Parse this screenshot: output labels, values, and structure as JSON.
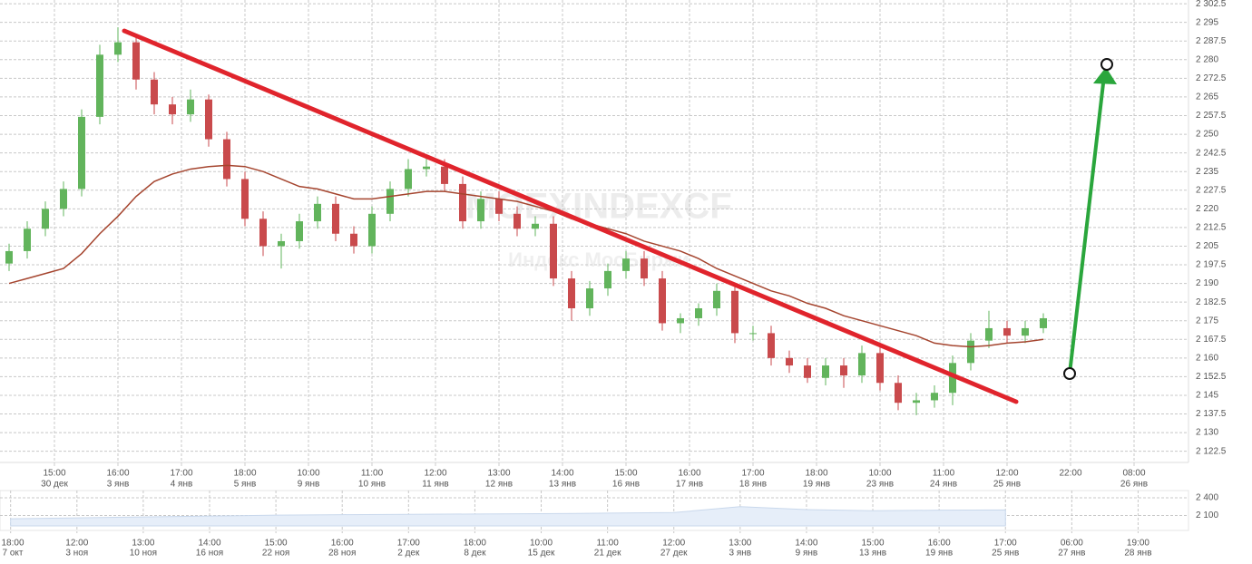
{
  "chart_data": {
    "type": "candlestick",
    "title": "MOEXINDEXCF",
    "subtitle": "Индекс МосБиржи",
    "x": [
      1,
      3,
      5,
      7,
      9,
      11,
      13,
      15,
      17,
      19,
      21,
      23,
      25,
      27,
      29,
      31,
      33,
      35,
      37,
      39,
      41,
      43,
      45,
      47,
      49,
      51,
      53,
      55,
      57,
      59,
      61,
      63,
      65,
      67,
      69,
      71,
      73,
      75,
      77,
      79,
      81,
      83,
      85,
      87,
      89,
      91,
      93,
      95,
      97,
      99,
      101,
      103,
      105,
      107,
      109,
      111,
      113,
      115
    ],
    "open": [
      2198,
      2203,
      2212,
      2220,
      2228,
      2257,
      2282,
      2287,
      2272,
      2262,
      2258,
      2264,
      2248,
      2232,
      2216,
      2205,
      2207,
      2215,
      2222,
      2210,
      2205,
      2218,
      2228,
      2236,
      2237,
      2230,
      2215,
      2224,
      2218,
      2212,
      2214,
      2192,
      2180,
      2188,
      2195,
      2200,
      2192,
      2174,
      2176,
      2180,
      2187,
      2170,
      2170,
      2160,
      2157,
      2152,
      2157,
      2153,
      2162,
      2150,
      2142,
      2143,
      2146,
      2158,
      2167,
      2172,
      2169,
      2172
    ],
    "high": [
      2206,
      2215,
      2223,
      2231,
      2260,
      2286,
      2293,
      2289,
      2275,
      2265,
      2268,
      2266,
      2251,
      2235,
      2219,
      2210,
      2218,
      2225,
      2225,
      2213,
      2221,
      2231,
      2240,
      2241,
      2240,
      2233,
      2227,
      2227,
      2221,
      2217,
      2217,
      2195,
      2191,
      2198,
      2203,
      2203,
      2195,
      2178,
      2182,
      2190,
      2190,
      2173,
      2173,
      2163,
      2160,
      2160,
      2160,
      2165,
      2165,
      2153,
      2146,
      2149,
      2161,
      2170,
      2179,
      2175,
      2175,
      2178
    ],
    "low": [
      2195,
      2200,
      2209,
      2217,
      2225,
      2254,
      2279,
      2268,
      2258,
      2254,
      2255,
      2245,
      2229,
      2213,
      2201,
      2196,
      2204,
      2212,
      2207,
      2202,
      2202,
      2215,
      2225,
      2233,
      2227,
      2212,
      2212,
      2215,
      2209,
      2209,
      2189,
      2175,
      2177,
      2185,
      2192,
      2189,
      2171,
      2170,
      2173,
      2177,
      2166,
      2167,
      2157,
      2154,
      2150,
      2149,
      2148,
      2150,
      2147,
      2139,
      2137,
      2140,
      2141,
      2155,
      2164,
      2166,
      2166,
      2170
    ],
    "close": [
      2203,
      2212,
      2220,
      2228,
      2257,
      2282,
      2287,
      2272,
      2262,
      2258,
      2264,
      2248,
      2232,
      2216,
      2205,
      2207,
      2215,
      2222,
      2210,
      2205,
      2218,
      2228,
      2236,
      2237,
      2230,
      2215,
      2224,
      2218,
      2212,
      2214,
      2192,
      2180,
      2188,
      2195,
      2200,
      2192,
      2174,
      2176,
      2180,
      2187,
      2170,
      2170,
      2160,
      2157,
      2152,
      2157,
      2153,
      2162,
      2150,
      2142,
      2143,
      2146,
      2158,
      2167,
      2172,
      2169,
      2172,
      2176
    ],
    "colors": {
      "up": "#62b45c",
      "down": "#c94a4c"
    },
    "moving_average": {
      "color": "#a5452f",
      "values": [
        2190,
        2192,
        2194,
        2196,
        2202,
        2210,
        2217,
        2225,
        2231,
        2234,
        2236,
        2237,
        2237.5,
        2237,
        2235,
        2232,
        2229,
        2228,
        2226,
        2224,
        2224,
        2225,
        2226,
        2227,
        2227,
        2226,
        2225,
        2224,
        2223,
        2221,
        2219,
        2216,
        2214,
        2212,
        2210,
        2207,
        2205,
        2203,
        2200,
        2196,
        2193,
        2190,
        2187,
        2185,
        2182,
        2180,
        2177,
        2175,
        2173,
        2171,
        2169,
        2166,
        2165,
        2164.5,
        2165,
        2166,
        2166.5,
        2167.5
      ]
    },
    "xlim": [
      0,
      131
    ],
    "xticks": [
      {
        "value": 6,
        "label": [
          "15:00",
          "30 дек"
        ]
      },
      {
        "value": 13,
        "label": [
          "16:00",
          "3 янв"
        ]
      },
      {
        "value": 20,
        "label": [
          "17:00",
          "4 янв"
        ]
      },
      {
        "value": 27,
        "label": [
          "18:00",
          "5 янв"
        ]
      },
      {
        "value": 34,
        "label": [
          "10:00",
          "9 янв"
        ]
      },
      {
        "value": 41,
        "label": [
          "11:00",
          "10 янв"
        ]
      },
      {
        "value": 48,
        "label": [
          "12:00",
          "11 янв"
        ]
      },
      {
        "value": 55,
        "label": [
          "13:00",
          "12 янв"
        ]
      },
      {
        "value": 62,
        "label": [
          "14:00",
          "13 янв"
        ]
      },
      {
        "value": 69,
        "label": [
          "15:00",
          "16 янв"
        ]
      },
      {
        "value": 76,
        "label": [
          "16:00",
          "17 янв"
        ]
      },
      {
        "value": 83,
        "label": [
          "17:00",
          "18 янв"
        ]
      },
      {
        "value": 90,
        "label": [
          "18:00",
          "19 янв"
        ]
      },
      {
        "value": 97,
        "label": [
          "10:00",
          "23 янв"
        ]
      },
      {
        "value": 104,
        "label": [
          "11:00",
          "24 янв"
        ]
      },
      {
        "value": 111,
        "label": [
          "12:00",
          "25 янв"
        ]
      },
      {
        "value": 118,
        "label": [
          "22:00"
        ]
      },
      {
        "value": 125,
        "label": [
          "08:00",
          "26 янв"
        ]
      }
    ],
    "ylim": [
      2118,
      2304
    ],
    "yticks": [
      {
        "value": 2122.5,
        "label": "2 122.5"
      },
      {
        "value": 2130,
        "label": "2 130"
      },
      {
        "value": 2137.5,
        "label": "2 137.5"
      },
      {
        "value": 2145,
        "label": "2 145"
      },
      {
        "value": 2152.5,
        "label": "2 152.5"
      },
      {
        "value": 2160,
        "label": "2 160"
      },
      {
        "value": 2167.5,
        "label": "2 167.5"
      },
      {
        "value": 2175,
        "label": "2 175"
      },
      {
        "value": 2182.5,
        "label": "2 182.5"
      },
      {
        "value": 2190,
        "label": "2 190"
      },
      {
        "value": 2197.5,
        "label": "2 197.5"
      },
      {
        "value": 2205,
        "label": "2 205"
      },
      {
        "value": 2212.5,
        "label": "2 212.5"
      },
      {
        "value": 2220,
        "label": "2 220"
      },
      {
        "value": 2227.5,
        "label": "2 227.5"
      },
      {
        "value": 2235,
        "label": "2 235"
      },
      {
        "value": 2242.5,
        "label": "2 242.5"
      },
      {
        "value": 2250,
        "label": "2 250"
      },
      {
        "value": 2257.5,
        "label": "2 257.5"
      },
      {
        "value": 2265,
        "label": "2 265"
      },
      {
        "value": 2272.5,
        "label": "2 272.5"
      },
      {
        "value": 2280,
        "label": "2 280"
      },
      {
        "value": 2287.5,
        "label": "2 287.5"
      },
      {
        "value": 2295,
        "label": "2 295"
      },
      {
        "value": 2302.5,
        "label": "2 302.5"
      }
    ],
    "grid": true,
    "navigator": {
      "type": "area",
      "color": "#e6eef9",
      "x": [
        0,
        1,
        2,
        3,
        4,
        5,
        6,
        7,
        8,
        9,
        10,
        11,
        12,
        13,
        14,
        15
      ],
      "values": [
        2045,
        2060,
        2075,
        2090,
        2105,
        2114,
        2120,
        2125,
        2130,
        2140,
        2150,
        2250,
        2200,
        2180,
        2190,
        2195
      ],
      "xlim": [
        -0.16,
        17.76
      ],
      "xticks": [
        {
          "value": 0,
          "label": [
            "18:00",
            "7 окт"
          ]
        },
        {
          "value": 1,
          "label": [
            "12:00",
            "3 ноя"
          ]
        },
        {
          "value": 2,
          "label": [
            "13:00",
            "10 ноя"
          ]
        },
        {
          "value": 3,
          "label": [
            "14:00",
            "16 ноя"
          ]
        },
        {
          "value": 4,
          "label": [
            "15:00",
            "22 ноя"
          ]
        },
        {
          "value": 5,
          "label": [
            "16:00",
            "28 ноя"
          ]
        },
        {
          "value": 6,
          "label": [
            "17:00",
            "2 дек"
          ]
        },
        {
          "value": 7,
          "label": [
            "18:00",
            "8 дек"
          ]
        },
        {
          "value": 8,
          "label": [
            "10:00",
            "15 дек"
          ]
        },
        {
          "value": 9,
          "label": [
            "11:00",
            "21 дек"
          ]
        },
        {
          "value": 10,
          "label": [
            "12:00",
            "27 дек"
          ]
        },
        {
          "value": 11,
          "label": [
            "13:00",
            "3 янв"
          ]
        },
        {
          "value": 12,
          "label": [
            "14:00",
            "9 янв"
          ]
        },
        {
          "value": 13,
          "label": [
            "15:00",
            "13 янв"
          ]
        },
        {
          "value": 14,
          "label": [
            "16:00",
            "19 янв"
          ]
        },
        {
          "value": 15,
          "label": [
            "17:00",
            "25 янв"
          ]
        },
        {
          "value": 16,
          "label": [
            "06:00",
            "27 янв"
          ]
        },
        {
          "value": 17,
          "label": [
            "19:00",
            "28 янв"
          ]
        }
      ],
      "ylim": [
        1923,
        2523
      ],
      "yticks": [
        {
          "value": 2400,
          "label": "2 400"
        },
        {
          "value": 2100,
          "label": "2 100"
        }
      ]
    }
  }
}
